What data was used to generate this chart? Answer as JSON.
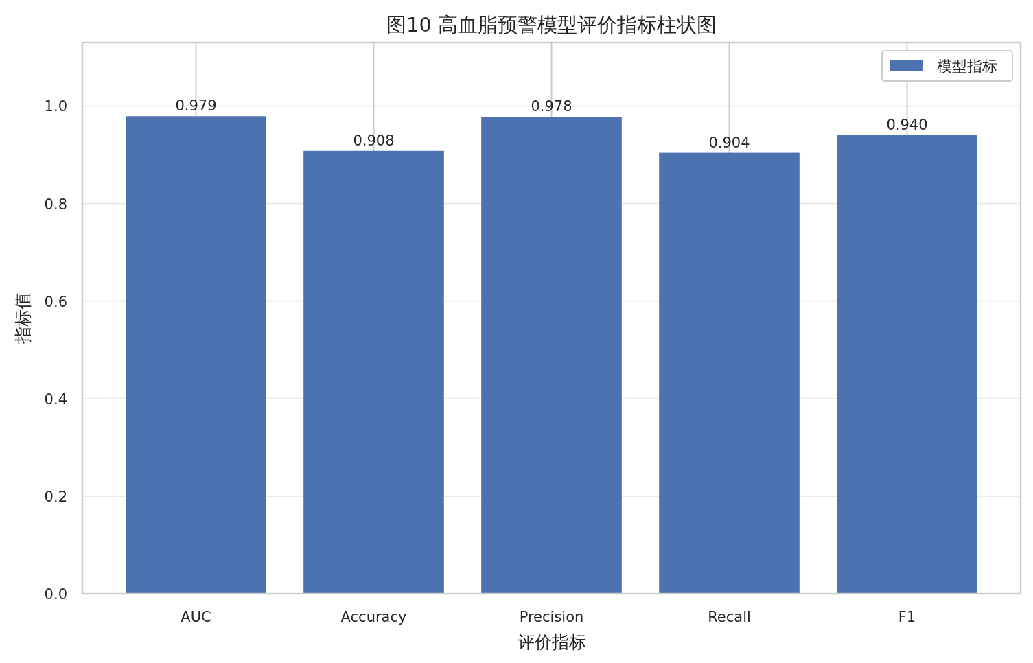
{
  "chart_data": {
    "type": "bar",
    "title": "图10 高血脂预警模型评价指标柱状图",
    "xlabel": "评价指标",
    "ylabel": "指标值",
    "categories": [
      "AUC",
      "Accuracy",
      "Precision",
      "Recall",
      "F1"
    ],
    "series": [
      {
        "name": "模型指标",
        "color": "#4c72b0",
        "values": [
          0.979,
          0.908,
          0.978,
          0.904,
          0.94
        ],
        "value_labels": [
          "0.979",
          "0.908",
          "0.978",
          "0.904",
          "0.940"
        ]
      }
    ],
    "ylim": [
      0,
      1.13
    ],
    "yticks": [
      {
        "value": 0,
        "label": "0.0"
      },
      {
        "value": 0.2,
        "label": "0.2"
      },
      {
        "value": 0.4,
        "label": "0.4"
      },
      {
        "value": 0.6,
        "label": "0.6"
      },
      {
        "value": 0.8,
        "label": "0.8"
      },
      {
        "value": 1,
        "label": "1.0"
      }
    ],
    "grid": true,
    "legend": "top right"
  }
}
